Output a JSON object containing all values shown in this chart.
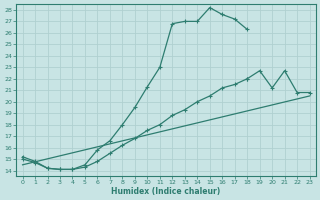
{
  "xlabel": "Humidex (Indice chaleur)",
  "bg_color": "#c8e4e4",
  "grid_color": "#b0d0d0",
  "line_color": "#2e7d70",
  "xlim": [
    -0.5,
    23.5
  ],
  "ylim": [
    13.5,
    28.5
  ],
  "xticks": [
    0,
    1,
    2,
    3,
    4,
    5,
    6,
    7,
    8,
    9,
    10,
    11,
    12,
    13,
    14,
    15,
    16,
    17,
    18,
    19,
    20,
    21,
    22,
    23
  ],
  "yticks": [
    14,
    15,
    16,
    17,
    18,
    19,
    20,
    21,
    22,
    23,
    24,
    25,
    26,
    27,
    28
  ],
  "curve1_x": [
    0,
    1,
    2,
    3,
    4,
    5,
    6,
    7,
    8,
    9,
    10,
    11,
    12,
    13,
    14,
    15,
    16,
    17,
    18
  ],
  "curve1_y": [
    15.2,
    14.8,
    14.2,
    14.1,
    14.1,
    14.5,
    15.8,
    16.6,
    18.0,
    19.5,
    21.3,
    23.0,
    26.8,
    27.0,
    27.0,
    28.2,
    27.6,
    27.2,
    26.3
  ],
  "curve2_x": [
    0,
    1,
    2,
    3,
    4,
    5,
    6,
    7,
    8,
    9,
    10,
    11,
    12,
    13,
    14,
    15,
    16,
    17,
    18,
    19,
    20,
    21,
    22,
    23
  ],
  "curve2_y": [
    15.0,
    14.7,
    14.2,
    14.1,
    14.1,
    14.3,
    14.8,
    15.5,
    16.2,
    16.8,
    17.5,
    18.0,
    18.8,
    19.3,
    20.0,
    20.5,
    21.2,
    21.5,
    22.0,
    22.7,
    21.2,
    22.7,
    20.8,
    20.8
  ],
  "curve3_x": [
    0,
    23
  ],
  "curve3_y": [
    14.5,
    20.5
  ]
}
